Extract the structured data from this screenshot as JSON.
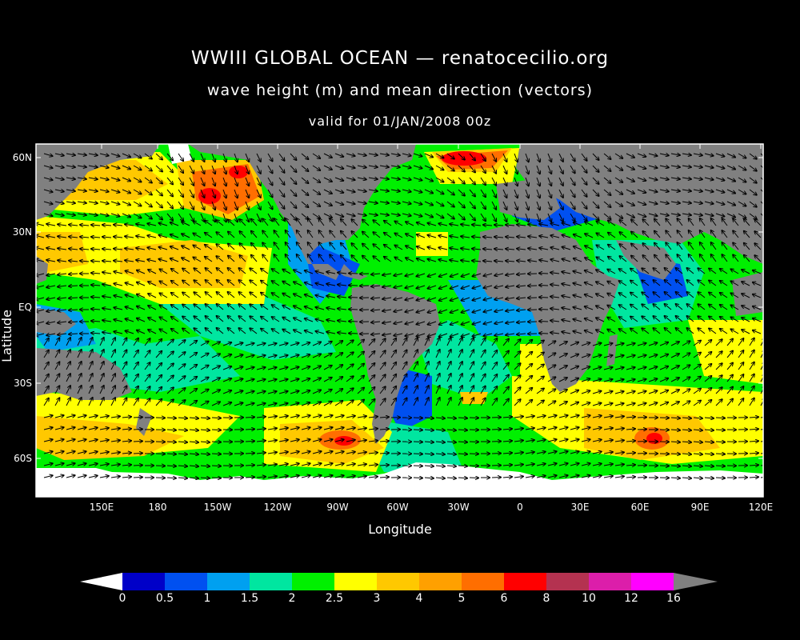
{
  "title": "WWIII GLOBAL OCEAN — renatocecilio.org",
  "subtitle": "wave height (m) and mean direction (vectors)",
  "valid": "valid for 01/JAN/2008 00z",
  "xlabel": "Longitude",
  "ylabel": "Latitude",
  "xticks": [
    "150E",
    "180",
    "150W",
    "120W",
    "90W",
    "60W",
    "30W",
    "0",
    "30E",
    "60E",
    "90E",
    "120E"
  ],
  "yticks": [
    "60N",
    "30N",
    "EQ",
    "30S",
    "60S"
  ],
  "colorbar": {
    "labels": [
      "0",
      "0.5",
      "1",
      "1.5",
      "2",
      "2.5",
      "3",
      "4",
      "5",
      "6",
      "8",
      "10",
      "12",
      "16"
    ],
    "colors": [
      "#0000c8",
      "#0050f0",
      "#00a0f0",
      "#00e6a0",
      "#00f000",
      "#ffff00",
      "#ffc800",
      "#ffa000",
      "#ff6e00",
      "#ff0000",
      "#b43250",
      "#dc1eaa",
      "#ff00ff"
    ],
    "under_color": "#ffffff",
    "over_color": "#808080"
  },
  "map_colors": {
    "land": "#808080",
    "ice": "#ffffff",
    "frame": "#ffffff"
  }
}
